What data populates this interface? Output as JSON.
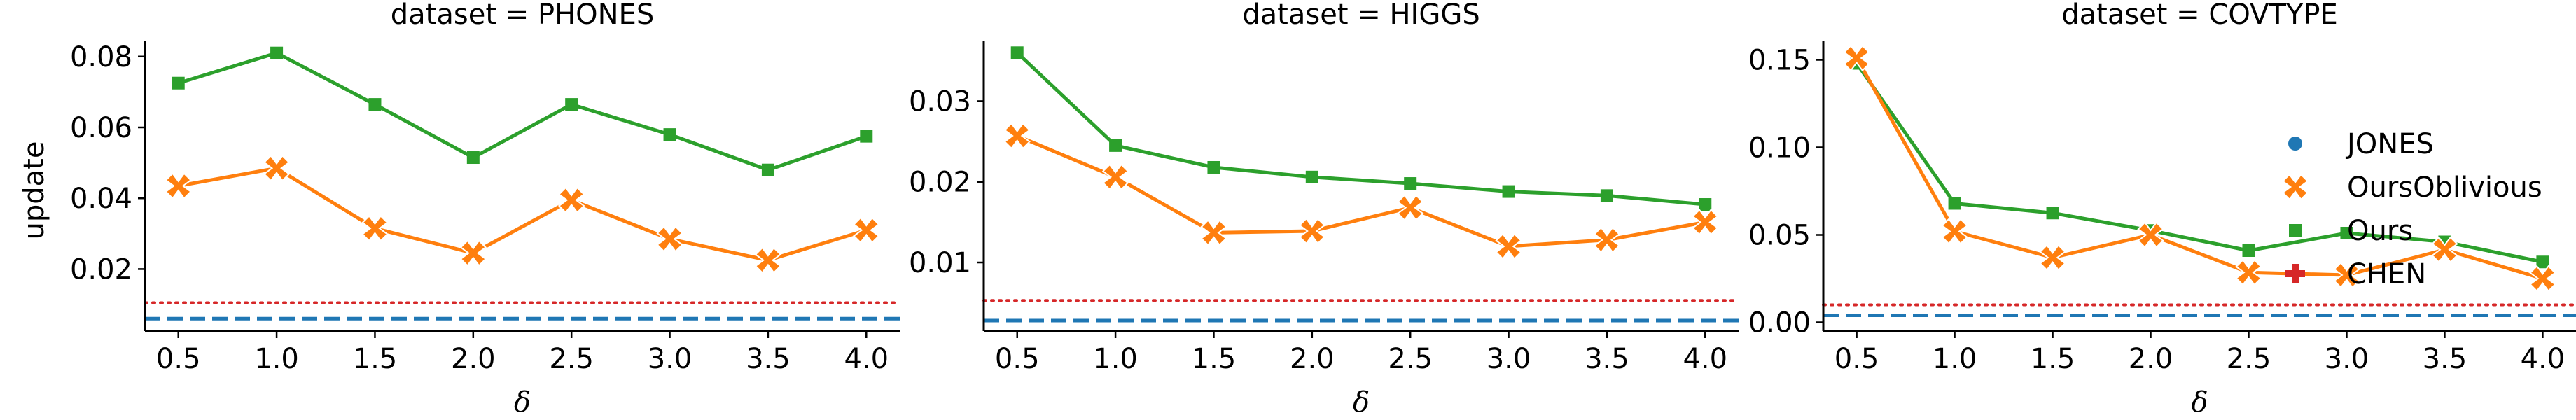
{
  "figure": {
    "ylabel": "update"
  },
  "legend": {
    "placement": "right",
    "entries": [
      {
        "key": "JONES",
        "label": "JONES",
        "marker": "circle",
        "color": "#1f77b4"
      },
      {
        "key": "OursOblivious",
        "label": "OursOblivious",
        "marker": "x",
        "color": "#ff7f0e"
      },
      {
        "key": "Ours",
        "label": "Ours",
        "marker": "square",
        "color": "#2ca02c"
      },
      {
        "key": "CHEN",
        "label": "CHEN",
        "marker": "plus",
        "color": "#d62728"
      }
    ]
  },
  "chart_data": [
    {
      "type": "line",
      "title": "dataset = PHONES",
      "xlabel": "δ",
      "ylabel": "update",
      "x": [
        0.5,
        1.0,
        1.5,
        2.0,
        2.5,
        3.0,
        3.5,
        4.0
      ],
      "x_tick_labels": [
        "0.5",
        "1.0",
        "1.5",
        "2.0",
        "2.5",
        "3.0",
        "3.5",
        "4.0"
      ],
      "xlim": [
        0.33,
        4.17
      ],
      "ylim": [
        0.0025,
        0.0845
      ],
      "y_ticks": [
        0.02,
        0.04,
        0.06,
        0.08
      ],
      "y_tick_labels": [
        "0.02",
        "0.04",
        "0.06",
        "0.08"
      ],
      "series": [
        {
          "key": "Ours",
          "color": "#2ca02c",
          "marker": "square",
          "values": [
            0.0725,
            0.081,
            0.0665,
            0.0515,
            0.0665,
            0.058,
            0.048,
            0.0575
          ]
        },
        {
          "key": "OursOblivious",
          "color": "#ff7f0e",
          "marker": "x",
          "values": [
            0.0435,
            0.0485,
            0.0315,
            0.0245,
            0.0395,
            0.0285,
            0.0225,
            0.031
          ]
        }
      ],
      "reference_lines": [
        {
          "key": "CHEN",
          "color": "#d62728",
          "style": "dotted",
          "y": 0.0105
        },
        {
          "key": "JONES",
          "color": "#1f77b4",
          "style": "dashed",
          "y": 0.006
        }
      ]
    },
    {
      "type": "line",
      "title": "dataset = HIGGS",
      "xlabel": "δ",
      "ylabel": "",
      "x": [
        0.5,
        1.0,
        1.5,
        2.0,
        2.5,
        3.0,
        3.5,
        4.0
      ],
      "x_tick_labels": [
        "0.5",
        "1.0",
        "1.5",
        "2.0",
        "2.5",
        "3.0",
        "3.5",
        "4.0"
      ],
      "xlim": [
        0.33,
        4.17
      ],
      "ylim": [
        0.0015,
        0.0375
      ],
      "y_ticks": [
        0.01,
        0.02,
        0.03
      ],
      "y_tick_labels": [
        "0.01",
        "0.02",
        "0.03"
      ],
      "series": [
        {
          "key": "Ours",
          "color": "#2ca02c",
          "marker": "square",
          "values": [
            0.036,
            0.0245,
            0.0218,
            0.0206,
            0.0198,
            0.0188,
            0.0183,
            0.0172
          ]
        },
        {
          "key": "OursOblivious",
          "color": "#ff7f0e",
          "marker": "x",
          "values": [
            0.0257,
            0.0206,
            0.0137,
            0.0139,
            0.0168,
            0.012,
            0.0128,
            0.015
          ]
        }
      ],
      "reference_lines": [
        {
          "key": "CHEN",
          "color": "#d62728",
          "style": "dotted",
          "y": 0.0053
        },
        {
          "key": "JONES",
          "color": "#1f77b4",
          "style": "dashed",
          "y": 0.0028
        }
      ]
    },
    {
      "type": "line",
      "title": "dataset = COVTYPE",
      "xlabel": "δ",
      "ylabel": "",
      "x": [
        0.5,
        1.0,
        1.5,
        2.0,
        2.5,
        3.0,
        3.5,
        4.0
      ],
      "x_tick_labels": [
        "0.5",
        "1.0",
        "1.5",
        "2.0",
        "2.5",
        "3.0",
        "3.5",
        "4.0"
      ],
      "xlim": [
        0.33,
        4.17
      ],
      "ylim": [
        -0.005,
        0.161
      ],
      "y_ticks": [
        0.0,
        0.05,
        0.1,
        0.15
      ],
      "y_tick_labels": [
        "0.00",
        "0.05",
        "0.10",
        "0.15"
      ],
      "series": [
        {
          "key": "Ours",
          "color": "#2ca02c",
          "marker": "square",
          "values": [
            0.148,
            0.068,
            0.0625,
            0.0525,
            0.041,
            0.051,
            0.046,
            0.0345
          ]
        },
        {
          "key": "OursOblivious",
          "color": "#ff7f0e",
          "marker": "x",
          "values": [
            0.151,
            0.052,
            0.037,
            0.05,
            0.0285,
            0.027,
            0.0415,
            0.025
          ]
        }
      ],
      "reference_lines": [
        {
          "key": "CHEN",
          "color": "#d62728",
          "style": "dotted",
          "y": 0.01
        },
        {
          "key": "JONES",
          "color": "#1f77b4",
          "style": "dashed",
          "y": 0.004
        }
      ]
    }
  ]
}
